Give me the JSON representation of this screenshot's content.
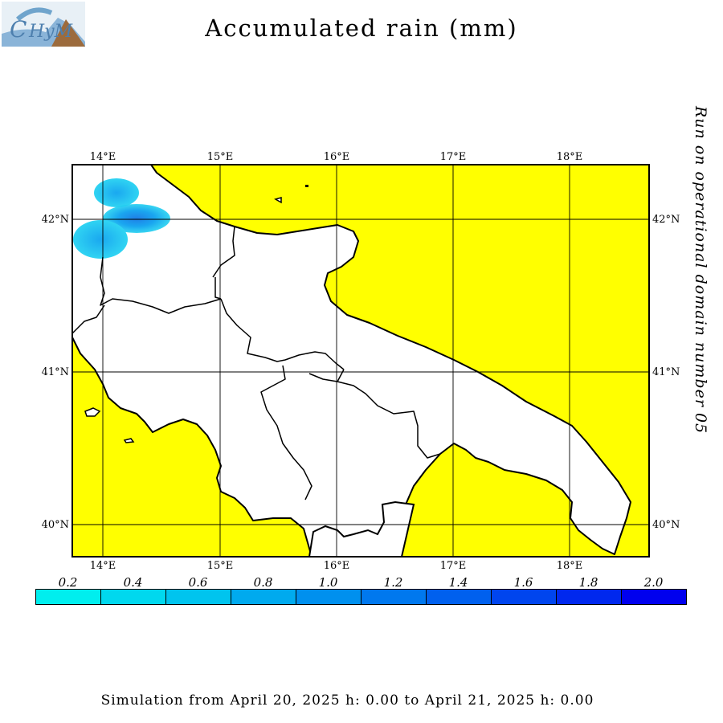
{
  "title": "Accumulated rain (mm)",
  "run_label": "Run on operational domain number 05",
  "footer": "Simulation from April 20, 2025 h: 0.00 to April 21, 2025 h: 0.00",
  "logo": {
    "icon": "chym-logo",
    "text": "CHyM"
  },
  "colors": {
    "sea": "#ffff00",
    "land": "#ffffff",
    "coast": "#000000"
  },
  "longitude_labels": [
    "14°E",
    "15°E",
    "16°E",
    "17°E",
    "18°E"
  ],
  "latitude_labels": [
    "42°N",
    "41°N",
    "40°N"
  ],
  "legend": {
    "values": [
      "0.2",
      "0.4",
      "0.6",
      "0.8",
      "1.0",
      "1.2",
      "1.4",
      "1.6",
      "1.8",
      "2.0"
    ],
    "colors": [
      "#00eeee",
      "#00d8ee",
      "#00c4ee",
      "#00aaee",
      "#0090ee",
      "#0078ee",
      "#0060ee",
      "#0045ee",
      "#0028ee",
      "#0000ee"
    ]
  }
}
